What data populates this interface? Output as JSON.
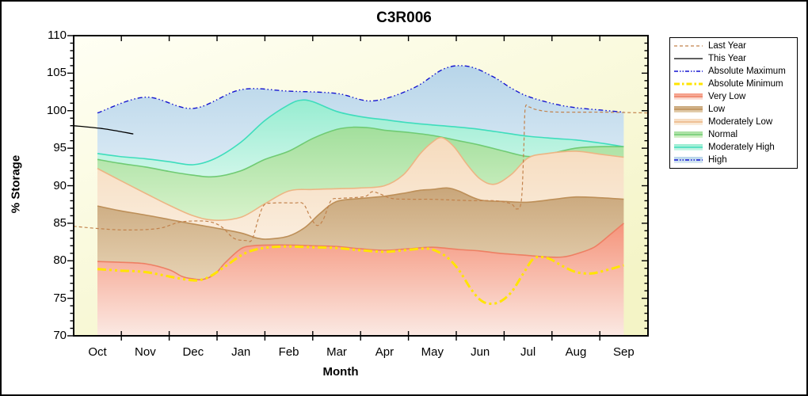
{
  "title": "C3R006",
  "y_axis": {
    "label": "% Storage",
    "min": 70,
    "max": 110,
    "major_step": 5,
    "minor_step": 1,
    "major_ticks": [
      70,
      75,
      80,
      85,
      90,
      95,
      100,
      105,
      110
    ]
  },
  "x_axis": {
    "label": "Month",
    "categories": [
      "Oct",
      "Nov",
      "Dec",
      "Jan",
      "Feb",
      "Mar",
      "Apr",
      "May",
      "Jun",
      "Jul",
      "Aug",
      "Sep"
    ]
  },
  "colors": {
    "plot_bg_top": "#FFFFF4",
    "plot_bg_bottom": "#F4F4C6",
    "axis": "#000000"
  },
  "legend": {
    "items": [
      {
        "label": "Last Year",
        "swatch": {
          "type": "line",
          "color": "#C2824C",
          "width": 1.2,
          "dash": "4 3"
        }
      },
      {
        "label": "This Year",
        "swatch": {
          "type": "line",
          "color": "#000000",
          "width": 1.3,
          "dash": ""
        }
      },
      {
        "label": "Absolute Maximum",
        "swatch": {
          "type": "line",
          "color": "#1414D0",
          "width": 1.4,
          "dash": "5 2 1.5 2 1.5 2"
        }
      },
      {
        "label": "Absolute Minimum",
        "swatch": {
          "type": "line",
          "color": "#FFE400",
          "width": 3,
          "dash": "7 3 2.5 3"
        }
      },
      {
        "label": "Very Low",
        "swatch": {
          "type": "band",
          "top": "#F5947B",
          "bottom": "#FCEAE4",
          "edge": "#EE7F63",
          "edge_dash": ""
        }
      },
      {
        "label": "Low",
        "swatch": {
          "type": "band",
          "top": "#C9A67A",
          "bottom": "#E6D2B3",
          "edge": "#BD8F58",
          "edge_dash": ""
        }
      },
      {
        "label": "Moderately Low",
        "swatch": {
          "type": "band",
          "top": "#F6DBBD",
          "bottom": "#FAEDDD",
          "edge": "#ECB584",
          "edge_dash": ""
        }
      },
      {
        "label": "Normal",
        "swatch": {
          "type": "band",
          "top": "#A2DF9C",
          "bottom": "#D8F2CB",
          "edge": "#6FCB73",
          "edge_dash": ""
        }
      },
      {
        "label": "Moderately High",
        "swatch": {
          "type": "band",
          "top": "#97EDD1",
          "bottom": "#CFF6E9",
          "edge": "#3EDDBC",
          "edge_dash": ""
        }
      },
      {
        "label": "High",
        "swatch": {
          "type": "band",
          "top": "#B7D5E9",
          "bottom": "#D9E9F4",
          "edge": "#1414D0",
          "edge_dash": "5 2 1.5 2 1.5 2"
        }
      }
    ]
  },
  "chart_data": {
    "type": "area",
    "title": "C3R006",
    "xlabel": "Month",
    "ylabel": "% Storage",
    "ylim": [
      70,
      110
    ],
    "x_unit": "month index, 0=Oct ... 11=Sep (fractional = within month)",
    "categories": [
      "Oct",
      "Nov",
      "Dec",
      "Jan",
      "Feb",
      "Mar",
      "Apr",
      "May",
      "Jun",
      "Jul",
      "Aug",
      "Sep"
    ],
    "boundaries": {
      "abs_max": [
        [
          0,
          99.7
        ],
        [
          1,
          101.8
        ],
        [
          2,
          100.3
        ],
        [
          3,
          102.8
        ],
        [
          4,
          102.6
        ],
        [
          5,
          102.3
        ],
        [
          5.75,
          101.3
        ],
        [
          6.6,
          103.0
        ],
        [
          7.25,
          105.6
        ],
        [
          7.75,
          105.9
        ],
        [
          8.25,
          104.6
        ],
        [
          8.65,
          103.0
        ],
        [
          9,
          101.9
        ],
        [
          9.55,
          100.9
        ],
        [
          10,
          100.4
        ],
        [
          10.5,
          100.1
        ],
        [
          11,
          99.8
        ]
      ],
      "modhigh_top": [
        [
          0,
          94.3
        ],
        [
          0.45,
          93.9
        ],
        [
          1,
          93.6
        ],
        [
          1.5,
          93.2
        ],
        [
          2,
          92.8
        ],
        [
          2.45,
          93.6
        ],
        [
          3,
          95.8
        ],
        [
          3.5,
          98.7
        ],
        [
          4,
          100.8
        ],
        [
          4.25,
          101.4
        ],
        [
          4.5,
          101.2
        ],
        [
          5,
          99.9
        ],
        [
          5.5,
          99.2
        ],
        [
          6,
          98.8
        ],
        [
          6.5,
          98.4
        ],
        [
          7,
          98.1
        ],
        [
          7.55,
          97.8
        ],
        [
          8,
          97.5
        ],
        [
          8.55,
          97.0
        ],
        [
          9,
          96.6
        ],
        [
          9.55,
          96.3
        ],
        [
          10,
          96.1
        ],
        [
          10.5,
          95.7
        ],
        [
          11,
          95.2
        ]
      ],
      "normal_top": [
        [
          0,
          93.5
        ],
        [
          0.45,
          93.0
        ],
        [
          1,
          92.5
        ],
        [
          1.5,
          91.9
        ],
        [
          2,
          91.4
        ],
        [
          2.45,
          91.2
        ],
        [
          3,
          92.0
        ],
        [
          3.5,
          93.5
        ],
        [
          4,
          94.6
        ],
        [
          4.5,
          96.3
        ],
        [
          5,
          97.5
        ],
        [
          5.35,
          97.8
        ],
        [
          5.7,
          97.7
        ],
        [
          6,
          97.4
        ],
        [
          6.5,
          97.1
        ],
        [
          7,
          96.7
        ],
        [
          7.55,
          96.0
        ],
        [
          8,
          95.4
        ],
        [
          8.5,
          94.6
        ],
        [
          9,
          93.9
        ],
        [
          9.4,
          94.2
        ],
        [
          10,
          95.0
        ],
        [
          10.5,
          95.2
        ],
        [
          11,
          95.2
        ]
      ],
      "modlow_top": [
        [
          0,
          92.3
        ],
        [
          0.45,
          90.8
        ],
        [
          1,
          89.0
        ],
        [
          1.5,
          87.4
        ],
        [
          2,
          86.0
        ],
        [
          2.45,
          85.4
        ],
        [
          3,
          85.8
        ],
        [
          3.5,
          87.6
        ],
        [
          4,
          89.3
        ],
        [
          4.5,
          89.5
        ],
        [
          5,
          89.6
        ],
        [
          5.5,
          89.7
        ],
        [
          6,
          90.0
        ],
        [
          6.4,
          91.5
        ],
        [
          6.75,
          94.3
        ],
        [
          7,
          95.8
        ],
        [
          7.2,
          96.4
        ],
        [
          7.45,
          95.2
        ],
        [
          7.73,
          92.8
        ],
        [
          8,
          90.9
        ],
        [
          8.3,
          90.2
        ],
        [
          8.65,
          91.5
        ],
        [
          9,
          93.7
        ],
        [
          9.4,
          94.3
        ],
        [
          10,
          94.6
        ],
        [
          10.5,
          94.2
        ],
        [
          11,
          93.8
        ]
      ],
      "low_top": [
        [
          0,
          87.3
        ],
        [
          0.45,
          86.7
        ],
        [
          1,
          86.1
        ],
        [
          1.5,
          85.5
        ],
        [
          2,
          84.9
        ],
        [
          2.45,
          84.4
        ],
        [
          3,
          83.7
        ],
        [
          3.35,
          83.0
        ],
        [
          3.6,
          82.9
        ],
        [
          4,
          83.3
        ],
        [
          4.35,
          84.5
        ],
        [
          4.65,
          86.3
        ],
        [
          5,
          87.9
        ],
        [
          5.5,
          88.3
        ],
        [
          6,
          88.6
        ],
        [
          6.4,
          89.0
        ],
        [
          6.75,
          89.4
        ],
        [
          7,
          89.5
        ],
        [
          7.3,
          89.7
        ],
        [
          7.55,
          89.3
        ],
        [
          8,
          88.1
        ],
        [
          8.55,
          87.9
        ],
        [
          9,
          87.8
        ],
        [
          9.55,
          88.2
        ],
        [
          10,
          88.5
        ],
        [
          10.5,
          88.4
        ],
        [
          11,
          88.2
        ]
      ],
      "verylow_top": [
        [
          0,
          79.9
        ],
        [
          0.45,
          79.8
        ],
        [
          1,
          79.6
        ],
        [
          1.5,
          78.8
        ],
        [
          1.77,
          77.9
        ],
        [
          2,
          77.6
        ],
        [
          2.2,
          77.5
        ],
        [
          2.45,
          78.2
        ],
        [
          2.68,
          79.8
        ],
        [
          3,
          81.6
        ],
        [
          3.25,
          82.0
        ],
        [
          3.6,
          82.1
        ],
        [
          4,
          82.1
        ],
        [
          4.5,
          82.0
        ],
        [
          5,
          81.9
        ],
        [
          5.5,
          81.6
        ],
        [
          6,
          81.4
        ],
        [
          6.5,
          81.6
        ],
        [
          7,
          81.8
        ],
        [
          7.55,
          81.5
        ],
        [
          8,
          81.3
        ],
        [
          8.4,
          81.0
        ],
        [
          8.8,
          80.8
        ],
        [
          9,
          80.7
        ],
        [
          9.4,
          80.5
        ],
        [
          9.72,
          80.5
        ],
        [
          10,
          80.9
        ],
        [
          10.38,
          81.8
        ],
        [
          10.7,
          83.4
        ],
        [
          11,
          85.0
        ]
      ],
      "abs_min": [
        [
          0,
          78.9
        ],
        [
          0.45,
          78.7
        ],
        [
          1,
          78.5
        ],
        [
          1.5,
          77.9
        ],
        [
          1.85,
          77.5
        ],
        [
          2.1,
          77.4
        ],
        [
          2.35,
          77.9
        ],
        [
          2.68,
          79.3
        ],
        [
          3,
          80.7
        ],
        [
          3.25,
          81.4
        ],
        [
          3.6,
          81.8
        ],
        [
          4,
          81.9
        ],
        [
          4.5,
          81.8
        ],
        [
          5,
          81.7
        ],
        [
          5.5,
          81.4
        ],
        [
          6,
          81.2
        ],
        [
          6.4,
          81.4
        ],
        [
          6.75,
          81.6
        ],
        [
          7,
          81.5
        ],
        [
          7.3,
          80.5
        ],
        [
          7.55,
          78.8
        ],
        [
          7.8,
          76.3
        ],
        [
          8,
          74.8
        ],
        [
          8.18,
          74.3
        ],
        [
          8.4,
          74.5
        ],
        [
          8.65,
          75.8
        ],
        [
          8.9,
          78.3
        ],
        [
          9.1,
          80.2
        ],
        [
          9.27,
          80.5
        ],
        [
          9.47,
          80.2
        ],
        [
          9.72,
          79.3
        ],
        [
          10,
          78.5
        ],
        [
          10.3,
          78.3
        ],
        [
          10.55,
          78.6
        ],
        [
          11,
          79.4
        ]
      ],
      "last_year": [
        [
          -0.5,
          84.6
        ],
        [
          0,
          84.3
        ],
        [
          0.61,
          84.1
        ],
        [
          1.27,
          84.3
        ],
        [
          1.69,
          85.1
        ],
        [
          2.02,
          85.3
        ],
        [
          2.35,
          85.2
        ],
        [
          2.6,
          84.5
        ],
        [
          2.85,
          83.0
        ],
        [
          3.1,
          82.7
        ],
        [
          3.23,
          82.8
        ],
        [
          3.36,
          85.5
        ],
        [
          3.48,
          87.4
        ],
        [
          3.68,
          87.7
        ],
        [
          4.09,
          87.7
        ],
        [
          4.3,
          87.6
        ],
        [
          4.45,
          85.8
        ],
        [
          4.59,
          84.7
        ],
        [
          4.72,
          85.5
        ],
        [
          4.88,
          88.0
        ],
        [
          5.05,
          88.3
        ],
        [
          5.33,
          88.4
        ],
        [
          5.61,
          88.6
        ],
        [
          5.74,
          89.2
        ],
        [
          5.91,
          88.9
        ],
        [
          6.16,
          88.3
        ],
        [
          6.57,
          88.2
        ],
        [
          6.99,
          88.2
        ],
        [
          7.4,
          88.1
        ],
        [
          7.9,
          88.0
        ],
        [
          8.31,
          88.0
        ],
        [
          8.64,
          87.6
        ],
        [
          8.76,
          86.9
        ],
        [
          8.86,
          88.0
        ],
        [
          8.91,
          95.0
        ],
        [
          8.94,
          100.3
        ],
        [
          9.02,
          100.5
        ],
        [
          9.14,
          100.2
        ],
        [
          9.39,
          99.9
        ],
        [
          9.72,
          99.8
        ],
        [
          10.55,
          99.8
        ],
        [
          11.5,
          99.7
        ]
      ],
      "this_year": [
        [
          -0.5,
          98.0
        ],
        [
          0.12,
          97.6
        ],
        [
          0.75,
          96.9
        ]
      ]
    },
    "bands": [
      {
        "name": "high",
        "upper": "abs_max",
        "lower": "modhigh_top",
        "top_color": "#B7D5E9",
        "bottom_color": "#D9E9F4",
        "edge": ""
      },
      {
        "name": "moderately-high",
        "upper": "modhigh_top",
        "lower": "normal_top",
        "top_color": "#97EDD1",
        "bottom_color": "#CFF6E9",
        "edge": "#3EDDBC"
      },
      {
        "name": "normal",
        "upper": "normal_top",
        "lower": "modlow_top",
        "top_color": "#A2DF9C",
        "bottom_color": "#D8F2CB",
        "edge": "#6FCB73"
      },
      {
        "name": "moderately-low",
        "upper": "modlow_top",
        "lower": "low_top",
        "top_color": "#F6DBBD",
        "bottom_color": "#FAEDDD",
        "edge": "#ECB584"
      },
      {
        "name": "low",
        "upper": "low_top",
        "lower": "verylow_top",
        "top_color": "#C9A67A",
        "bottom_color": "#E6D2B3",
        "edge": "#BD8F58"
      },
      {
        "name": "very-low",
        "upper": "verylow_top",
        "lower": "bottom",
        "top_color": "#F5947B",
        "bottom_color": "#FBE9E3",
        "edge": "#EE7F63"
      }
    ],
    "lines": [
      {
        "name": "absolute-maximum",
        "series": "abs_max",
        "color": "#1414D0",
        "width": 1.4,
        "dash": "6 3 1.5 3 1.5 3"
      },
      {
        "name": "absolute-minimum",
        "series": "abs_min",
        "color": "#FFE400",
        "width": 3,
        "dash": "11 4 3 4 3 4"
      },
      {
        "name": "last-year",
        "series": "last_year",
        "color": "#C2824C",
        "width": 1.2,
        "dash": "4 3"
      },
      {
        "name": "this-year",
        "series": "this_year",
        "color": "#000000",
        "width": 1.3,
        "dash": ""
      }
    ]
  }
}
